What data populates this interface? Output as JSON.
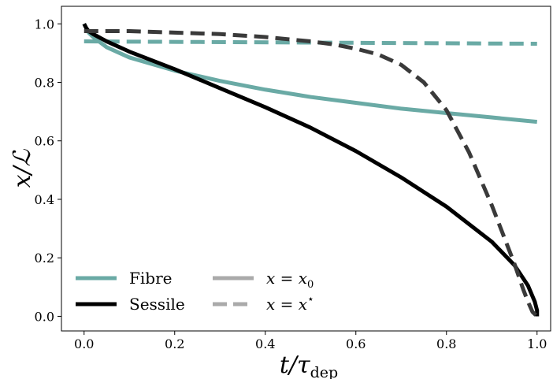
{
  "chart_data": {
    "type": "line",
    "xlabel": "t/τ_dep",
    "ylabel": "x/ℒ",
    "xlabel_parts": {
      "main": "t/τ",
      "sub": "dep"
    },
    "xlim": [
      -0.05,
      1.03
    ],
    "ylim": [
      -0.05,
      1.06
    ],
    "x_ticks": [
      "0.0",
      "0.2",
      "0.4",
      "0.6",
      "0.8",
      "1.0"
    ],
    "y_ticks": [
      "0.0",
      "0.2",
      "0.4",
      "0.6",
      "0.8",
      "1.0"
    ],
    "grid": false,
    "legend_position": "bottom-left",
    "legend_entries": [
      {
        "label": "Fibre",
        "color": "#6aaaa5",
        "style": "solid"
      },
      {
        "label": "Sessile",
        "color": "#000000",
        "style": "solid"
      },
      {
        "label_main": "x = x",
        "label_sub": "0",
        "label": "x = x0",
        "color": "#aaaaaa",
        "style": "solid"
      },
      {
        "label_main": "x = x",
        "label_sup": "⋆",
        "label": "x = x⋆",
        "color": "#aaaaaa",
        "style": "dashed"
      }
    ],
    "series": [
      {
        "name": "Fibre",
        "linestyle": "solid",
        "color": "#6aaaa5",
        "x": [
          0.0,
          0.01,
          0.02,
          0.05,
          0.1,
          0.2,
          0.3,
          0.4,
          0.5,
          0.6,
          0.7,
          0.8,
          0.9,
          1.0
        ],
        "y": [
          1.0,
          0.97,
          0.955,
          0.92,
          0.885,
          0.84,
          0.805,
          0.775,
          0.75,
          0.73,
          0.71,
          0.695,
          0.68,
          0.665
        ]
      },
      {
        "name": "Fibre x⋆",
        "linestyle": "dashed",
        "color": "#6aaaa5",
        "x": [
          0.0,
          1.0
        ],
        "y": [
          0.94,
          0.932
        ]
      },
      {
        "name": "Sessile",
        "linestyle": "solid",
        "color": "#000000",
        "x": [
          0.0,
          0.005,
          0.01,
          0.02,
          0.05,
          0.1,
          0.2,
          0.3,
          0.4,
          0.5,
          0.6,
          0.7,
          0.8,
          0.9,
          0.95,
          0.98,
          0.995,
          1.0,
          1.0
        ],
        "y": [
          1.0,
          0.985,
          0.975,
          0.965,
          0.94,
          0.905,
          0.845,
          0.78,
          0.715,
          0.645,
          0.565,
          0.475,
          0.375,
          0.255,
          0.175,
          0.105,
          0.05,
          0.02,
          0.0
        ]
      },
      {
        "name": "Sessile x⋆",
        "linestyle": "dashed",
        "color": "#3a3a3a",
        "x": [
          0.0,
          0.1,
          0.2,
          0.3,
          0.4,
          0.5,
          0.55,
          0.6,
          0.65,
          0.7,
          0.75,
          0.8,
          0.85,
          0.9,
          0.93,
          0.95,
          0.97,
          0.98,
          0.99,
          1.0
        ],
        "y": [
          0.975,
          0.975,
          0.97,
          0.965,
          0.955,
          0.94,
          0.93,
          0.915,
          0.895,
          0.86,
          0.8,
          0.705,
          0.56,
          0.38,
          0.26,
          0.18,
          0.09,
          0.05,
          0.015,
          0.0
        ]
      }
    ]
  }
}
